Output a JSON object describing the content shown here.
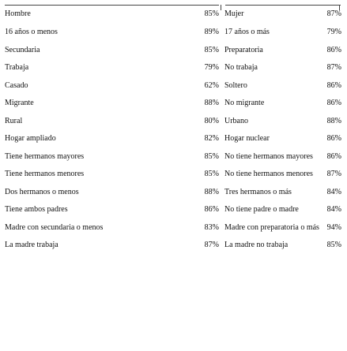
{
  "header": {
    "left_label": "Hombre",
    "left_value": "85%",
    "right_label": "Mujer",
    "right_value": "87%"
  },
  "rows": [
    {
      "left_label": "16 años o menos",
      "left_value": "89%",
      "right_label": "17 años o más",
      "right_value": "79%"
    },
    {
      "left_label": "Secundaria",
      "left_value": "85%",
      "right_label": "Preparatoria",
      "right_value": "86%"
    },
    {
      "left_label": "Trabaja",
      "left_value": "79%",
      "right_label": "No trabaja",
      "right_value": "87%"
    },
    {
      "left_label": "Casado",
      "left_value": "62%",
      "right_label": "Soltero",
      "right_value": "86%"
    },
    {
      "left_label": "Migrante",
      "left_value": "88%",
      "right_label": "No migrante",
      "right_value": "86%"
    },
    {
      "left_label": "Rural",
      "left_value": "80%",
      "right_label": "Urbano",
      "right_value": "88%"
    },
    {
      "left_label": "Hogar ampliado",
      "left_value": "82%",
      "right_label": "Hogar nuclear",
      "right_value": "86%"
    },
    {
      "left_label": "Tiene hermanos mayores",
      "left_value": "85%",
      "right_label": "No tiene hermanos mayores",
      "right_value": "86%"
    },
    {
      "left_label": "Tiene hermanos menores",
      "left_value": "85%",
      "right_label": "No tiene hermanos menores",
      "right_value": "87%"
    },
    {
      "left_label": "Dos hermanos o menos",
      "left_value": "88%",
      "right_label": "Tres hermanos o más",
      "right_value": "84%"
    },
    {
      "left_label": "Tiene ambos padres",
      "left_value": "86%",
      "right_label": "No tiene padre o madre",
      "right_value": "84%"
    },
    {
      "left_label": "Madre con secundaria o menos",
      "left_value": "83%",
      "right_label": "Madre con preparatoria o más",
      "right_value": "94%"
    },
    {
      "left_label": "La madre trabaja",
      "left_value": "87%",
      "right_label": "La madre no trabaja",
      "right_value": "85%"
    }
  ]
}
